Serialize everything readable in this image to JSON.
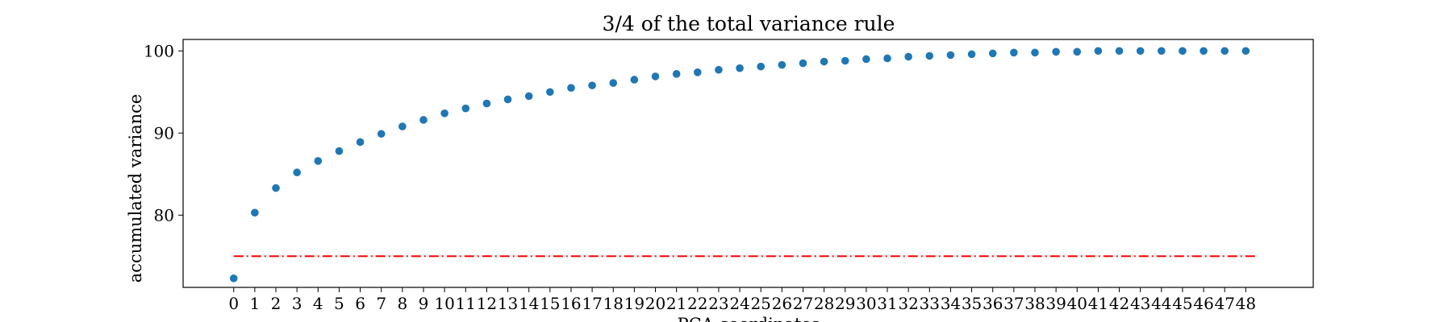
{
  "chart_data": {
    "type": "scatter",
    "title": "3/4 of the total variance rule",
    "xlabel": "PCA coordinates",
    "ylabel": "accumulated variance",
    "x": [
      0,
      1,
      2,
      3,
      4,
      5,
      6,
      7,
      8,
      9,
      10,
      11,
      12,
      13,
      14,
      15,
      16,
      17,
      18,
      19,
      20,
      21,
      22,
      23,
      24,
      25,
      26,
      27,
      28,
      29,
      30,
      31,
      32,
      33,
      34,
      35,
      36,
      37,
      38,
      39,
      40,
      41,
      42,
      43,
      44,
      45,
      46,
      47,
      48
    ],
    "y": [
      72.3,
      80.3,
      83.3,
      85.2,
      86.6,
      87.8,
      88.9,
      89.9,
      90.8,
      91.6,
      92.4,
      93.0,
      93.6,
      94.1,
      94.5,
      95.0,
      95.5,
      95.8,
      96.1,
      96.5,
      96.9,
      97.2,
      97.4,
      97.7,
      97.9,
      98.1,
      98.3,
      98.5,
      98.7,
      98.8,
      99.0,
      99.1,
      99.3,
      99.4,
      99.5,
      99.6,
      99.7,
      99.8,
      99.8,
      99.9,
      99.9,
      100.0,
      100.0,
      100.0,
      100.0,
      100.0,
      100.0,
      100.0,
      100.0
    ],
    "xticks": [
      "0",
      "1",
      "2",
      "3",
      "4",
      "5",
      "6",
      "7",
      "8",
      "9",
      "10",
      "11",
      "12",
      "13",
      "14",
      "15",
      "16",
      "17",
      "18",
      "19",
      "20",
      "21",
      "22",
      "23",
      "24",
      "25",
      "26",
      "27",
      "28",
      "29",
      "30",
      "31",
      "32",
      "33",
      "34",
      "35",
      "36",
      "37",
      "38",
      "39",
      "40",
      "41",
      "42",
      "43",
      "44",
      "45",
      "46",
      "47",
      "48"
    ],
    "yticks": [
      80,
      90,
      100
    ],
    "xlim": [
      -2.4,
      51.2
    ],
    "ylim": [
      71.2,
      101.4
    ],
    "threshold": {
      "y": 75,
      "x_start": 0,
      "x_end": 48.5,
      "color": "#ff0000",
      "style": "dash-dot"
    },
    "marker_color": "#1f77b4",
    "grid": false,
    "legend": "none"
  }
}
